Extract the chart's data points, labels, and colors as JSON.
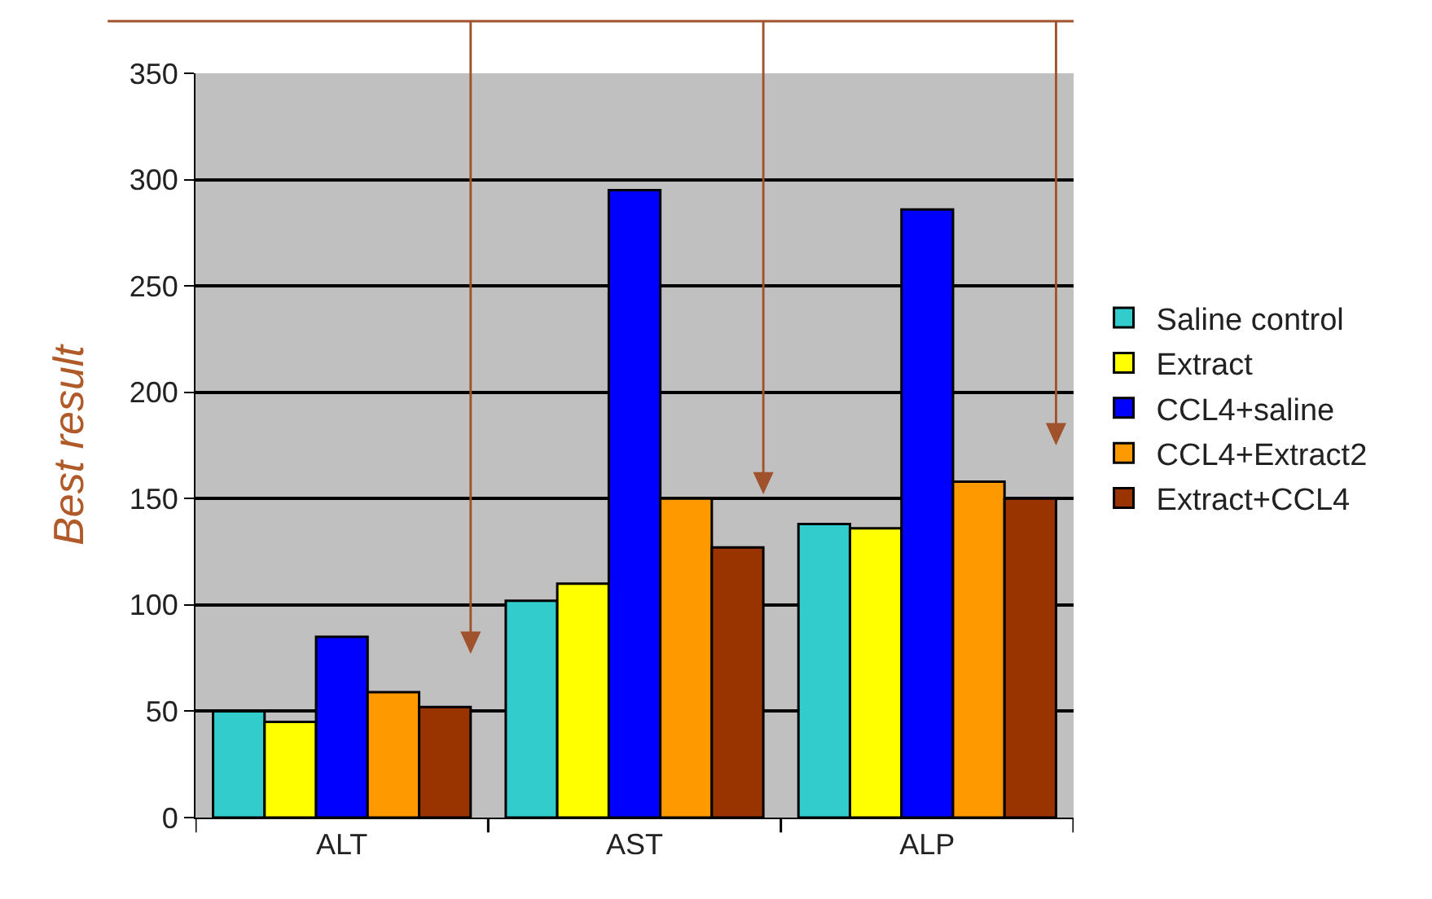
{
  "chart_data": {
    "type": "bar",
    "ylabel": "Best result",
    "categories": [
      "ALT",
      "AST",
      "ALP"
    ],
    "series": [
      {
        "name": "Saline control",
        "color": "#33cccc",
        "values": [
          50,
          102,
          138
        ]
      },
      {
        "name": "Extract",
        "color": "#ffff00",
        "values": [
          45,
          110,
          136
        ]
      },
      {
        "name": "CCL4+saline",
        "color": "#0000ff",
        "values": [
          85,
          295,
          286
        ]
      },
      {
        "name": "CCL4+Extract2",
        "color": "#ff9900",
        "values": [
          59,
          150,
          158
        ]
      },
      {
        "name": "Extract+CCL4",
        "color": "#993300",
        "values": [
          52,
          127,
          150
        ]
      }
    ],
    "ylim": [
      0,
      350
    ],
    "yticks": [
      0,
      50,
      100,
      150,
      200,
      250,
      300,
      350
    ],
    "grid": "y",
    "legend": "right"
  }
}
